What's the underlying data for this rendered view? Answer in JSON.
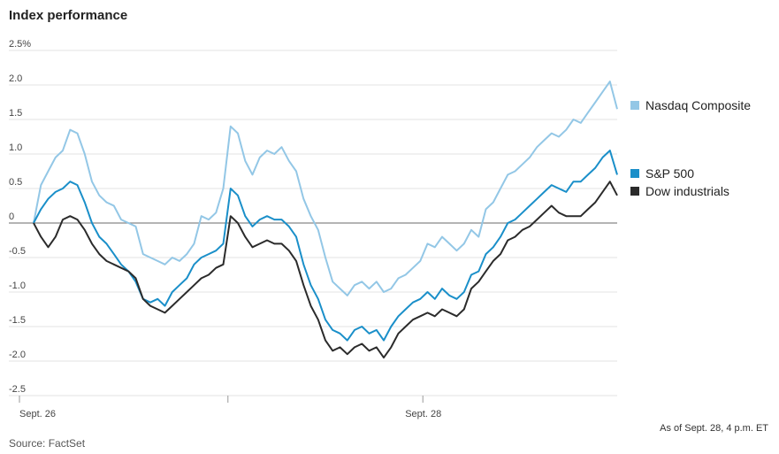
{
  "title": "Index performance",
  "source": "Source: FactSet",
  "note": "As of Sept. 28, 4 p.m. ET",
  "colors": {
    "nasdaq": "#93c7e6",
    "sp500": "#1a8fc9",
    "dow": "#2b2b2b",
    "grid": "#e3e3e3",
    "zero": "#888888"
  },
  "chart_data": {
    "type": "line",
    "title": "Index performance",
    "ylabel": "",
    "xlabel": "",
    "ylim": [
      -2.5,
      2.5
    ],
    "yticks": [
      {
        "value": 2.5,
        "label": "2.5%"
      },
      {
        "value": 2.0,
        "label": "2.0"
      },
      {
        "value": 1.5,
        "label": "1.5"
      },
      {
        "value": 1.0,
        "label": "1.0"
      },
      {
        "value": 0.5,
        "label": "0.5"
      },
      {
        "value": 0,
        "label": "0"
      },
      {
        "value": -0.5,
        "label": "-0.5"
      },
      {
        "value": -1.0,
        "label": "-1.0"
      },
      {
        "value": -1.5,
        "label": "-1.5"
      },
      {
        "value": -2.0,
        "label": "-2.0"
      },
      {
        "value": -2.5,
        "label": "-2.5"
      }
    ],
    "xticks": [
      {
        "label": "Sept. 26",
        "at": 0
      },
      {
        "label": "",
        "at": 0.333
      },
      {
        "label": "Sept. 28",
        "at": 0.667
      }
    ],
    "legend_placement": "right",
    "series": [
      {
        "name": "Nasdaq Composite",
        "color": "#93c7e6",
        "values": [
          0.0,
          0.55,
          0.75,
          0.95,
          1.05,
          1.35,
          1.3,
          1.0,
          0.6,
          0.4,
          0.3,
          0.25,
          0.05,
          0.0,
          -0.05,
          -0.45,
          -0.5,
          -0.55,
          -0.6,
          -0.5,
          -0.55,
          -0.45,
          -0.3,
          0.1,
          0.05,
          0.15,
          0.5,
          1.4,
          1.3,
          0.9,
          0.7,
          0.95,
          1.05,
          1.0,
          1.1,
          0.9,
          0.75,
          0.35,
          0.1,
          -0.1,
          -0.5,
          -0.85,
          -0.95,
          -1.05,
          -0.9,
          -0.85,
          -0.95,
          -0.85,
          -1.0,
          -0.95,
          -0.8,
          -0.75,
          -0.65,
          -0.55,
          -0.3,
          -0.35,
          -0.2,
          -0.3,
          -0.4,
          -0.3,
          -0.1,
          -0.2,
          0.2,
          0.3,
          0.5,
          0.7,
          0.75,
          0.85,
          0.95,
          1.1,
          1.2,
          1.3,
          1.25,
          1.35,
          1.5,
          1.45,
          1.6,
          1.75,
          1.9,
          2.05,
          1.65
        ]
      },
      {
        "name": "S&P 500",
        "color": "#1a8fc9",
        "values": [
          0.0,
          0.2,
          0.35,
          0.45,
          0.5,
          0.6,
          0.55,
          0.3,
          0.0,
          -0.2,
          -0.3,
          -0.45,
          -0.6,
          -0.7,
          -0.85,
          -1.1,
          -1.15,
          -1.1,
          -1.2,
          -1.0,
          -0.9,
          -0.8,
          -0.6,
          -0.5,
          -0.45,
          -0.4,
          -0.3,
          0.5,
          0.4,
          0.1,
          -0.05,
          0.05,
          0.1,
          0.05,
          0.05,
          -0.05,
          -0.2,
          -0.6,
          -0.9,
          -1.1,
          -1.4,
          -1.55,
          -1.6,
          -1.7,
          -1.55,
          -1.5,
          -1.6,
          -1.55,
          -1.7,
          -1.5,
          -1.35,
          -1.25,
          -1.15,
          -1.1,
          -1.0,
          -1.1,
          -0.95,
          -1.05,
          -1.1,
          -1.0,
          -0.75,
          -0.7,
          -0.45,
          -0.35,
          -0.2,
          0.0,
          0.05,
          0.15,
          0.25,
          0.35,
          0.45,
          0.55,
          0.5,
          0.45,
          0.6,
          0.6,
          0.7,
          0.8,
          0.95,
          1.05,
          0.7
        ]
      },
      {
        "name": "Dow industrials",
        "color": "#2b2b2b",
        "values": [
          0.0,
          -0.2,
          -0.35,
          -0.2,
          0.05,
          0.1,
          0.05,
          -0.1,
          -0.3,
          -0.45,
          -0.55,
          -0.6,
          -0.65,
          -0.7,
          -0.8,
          -1.1,
          -1.2,
          -1.25,
          -1.3,
          -1.2,
          -1.1,
          -1.0,
          -0.9,
          -0.8,
          -0.75,
          -0.65,
          -0.6,
          0.1,
          0.0,
          -0.2,
          -0.35,
          -0.3,
          -0.25,
          -0.3,
          -0.3,
          -0.4,
          -0.55,
          -0.9,
          -1.2,
          -1.4,
          -1.7,
          -1.85,
          -1.8,
          -1.9,
          -1.8,
          -1.75,
          -1.85,
          -1.8,
          -1.95,
          -1.8,
          -1.6,
          -1.5,
          -1.4,
          -1.35,
          -1.3,
          -1.35,
          -1.25,
          -1.3,
          -1.35,
          -1.25,
          -0.95,
          -0.85,
          -0.7,
          -0.55,
          -0.45,
          -0.25,
          -0.2,
          -0.1,
          -0.05,
          0.05,
          0.15,
          0.25,
          0.15,
          0.1,
          0.1,
          0.1,
          0.2,
          0.3,
          0.45,
          0.6,
          0.4
        ]
      }
    ]
  }
}
